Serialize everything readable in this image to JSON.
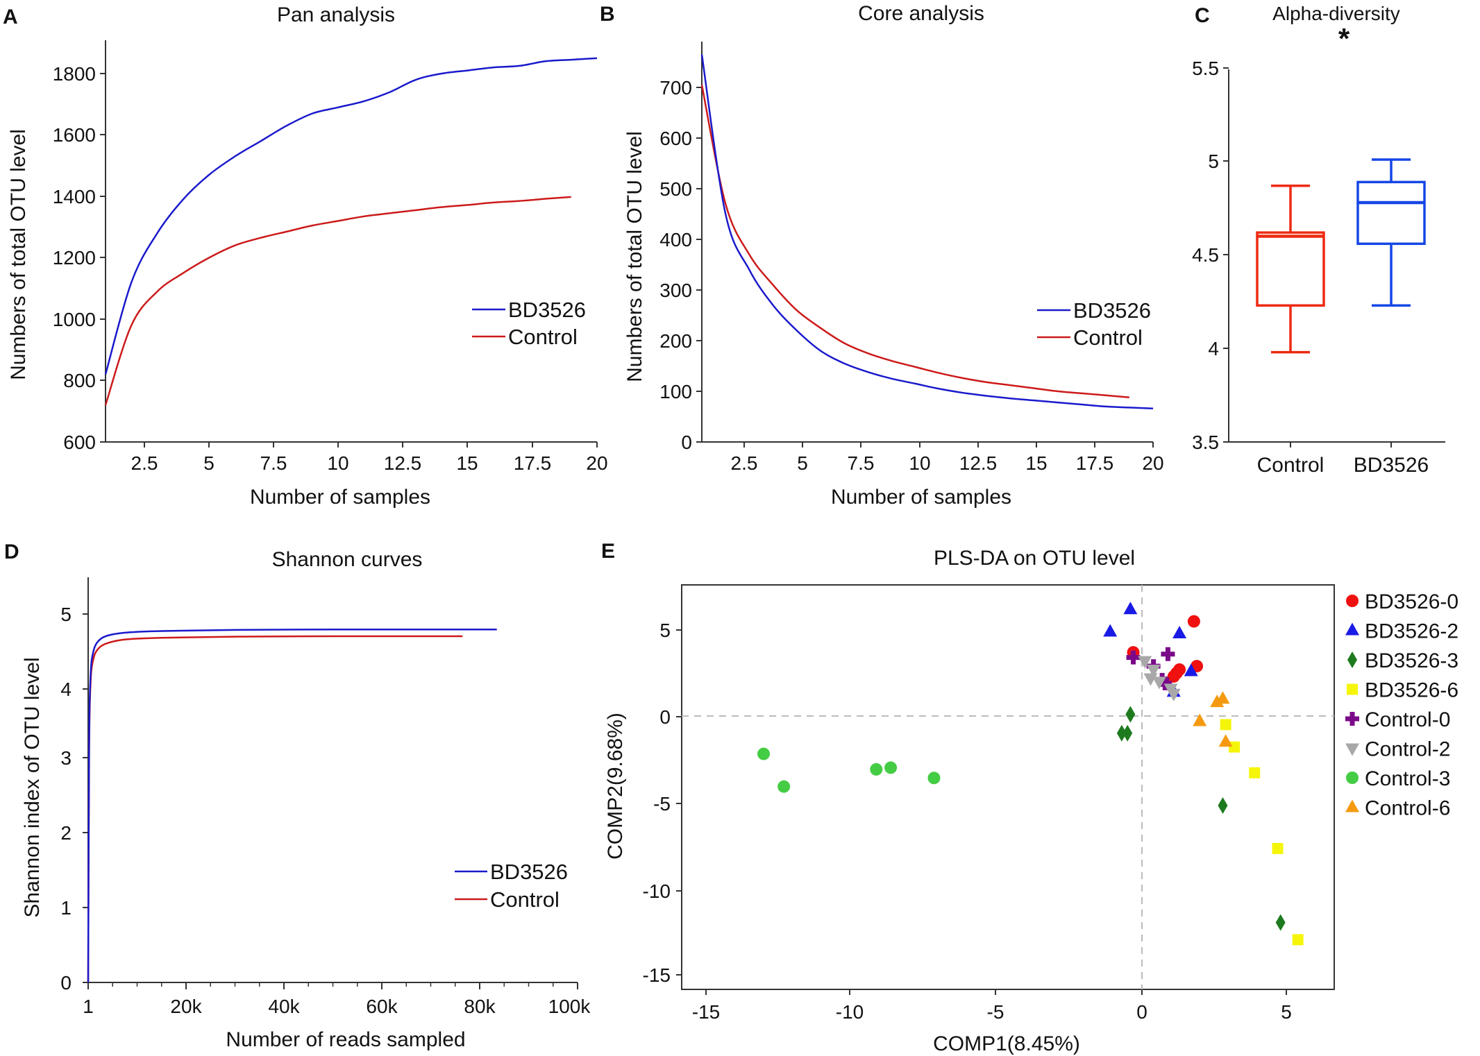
{
  "colors": {
    "bd": "#1a1acc",
    "ctrl": "#cc1a1a",
    "box_ctrl": "#ee2a12",
    "box_bd": "#1447e6",
    "red": "#f01010",
    "blue": "#1a1ae6",
    "green": "#1e7a1e",
    "yellow": "#f5f50a",
    "purple": "#7a0a8a",
    "gray": "#a8a8a8",
    "lime": "#44cc44",
    "orange": "#f59a10"
  },
  "chart_data": [
    {
      "panel": "A",
      "type": "line",
      "title": "Pan analysis",
      "xlabel": "Number of samples",
      "ylabel": "Numbers of total OTU level",
      "xlim": [
        1,
        20
      ],
      "ylim": [
        600,
        1900
      ],
      "xticks": [
        "2.5",
        "5",
        "7.5",
        "10",
        "12.5",
        "15",
        "17.5",
        "20"
      ],
      "yticks": [
        "600",
        "800",
        "1000",
        "1200",
        "1400",
        "1600",
        "1800"
      ],
      "legend": [
        "BD3526",
        "Control"
      ],
      "series": [
        {
          "name": "BD3526",
          "x": [
            1,
            2,
            3,
            4,
            5,
            6,
            7,
            8,
            9,
            10,
            11,
            12,
            13,
            14,
            15,
            16,
            17,
            18,
            19,
            20
          ],
          "y": [
            820,
            1120,
            1280,
            1390,
            1470,
            1530,
            1580,
            1630,
            1670,
            1690,
            1710,
            1740,
            1780,
            1800,
            1810,
            1820,
            1825,
            1840,
            1845,
            1850
          ]
        },
        {
          "name": "Control",
          "x": [
            1,
            2,
            3,
            4,
            5,
            6,
            7,
            8,
            9,
            10,
            11,
            12,
            13,
            14,
            15,
            16,
            17,
            18,
            19
          ],
          "y": [
            720,
            980,
            1090,
            1150,
            1200,
            1240,
            1265,
            1285,
            1305,
            1320,
            1335,
            1345,
            1355,
            1365,
            1372,
            1380,
            1385,
            1392,
            1398
          ]
        }
      ]
    },
    {
      "panel": "B",
      "type": "line",
      "title": "Core analysis",
      "xlabel": "Number of samples",
      "ylabel": "Numbers of total OTU level",
      "xlim": [
        1,
        20
      ],
      "ylim": [
        0,
        780
      ],
      "xticks": [
        "2.5",
        "5",
        "7.5",
        "10",
        "12.5",
        "15",
        "17.5",
        "20"
      ],
      "yticks": [
        "0",
        "100",
        "200",
        "300",
        "400",
        "500",
        "600",
        "700"
      ],
      "legend": [
        "BD3526",
        "Control"
      ],
      "series": [
        {
          "name": "BD3526",
          "x": [
            1,
            2,
            3,
            4,
            5,
            6,
            7,
            8,
            9,
            10,
            11,
            12,
            13,
            14,
            15,
            16,
            17,
            18,
            19,
            20
          ],
          "y": [
            765,
            450,
            340,
            270,
            220,
            180,
            155,
            138,
            125,
            115,
            105,
            97,
            91,
            86,
            82,
            78,
            74,
            70,
            68,
            66
          ]
        },
        {
          "name": "Control",
          "x": [
            1,
            2,
            3,
            4,
            5,
            6,
            7,
            8,
            9,
            10,
            11,
            12,
            13,
            14,
            15,
            16,
            17,
            18,
            19
          ],
          "y": [
            705,
            470,
            370,
            310,
            260,
            225,
            195,
            175,
            160,
            148,
            136,
            126,
            118,
            112,
            106,
            100,
            96,
            92,
            88
          ]
        }
      ]
    },
    {
      "panel": "C",
      "type": "box",
      "title": "Alpha-diversity",
      "significance": "*",
      "categories": [
        "Control",
        "BD3526"
      ],
      "ylim": [
        3.5,
        5.5
      ],
      "yticks": [
        "3.5",
        "4",
        "4.5",
        "5",
        "5.5"
      ],
      "boxes": [
        {
          "name": "Control",
          "min": 3.98,
          "q1": 4.23,
          "median": 4.6,
          "q3": 4.62,
          "max": 4.87
        },
        {
          "name": "BD3526",
          "min": 4.23,
          "q1": 4.56,
          "median": 4.78,
          "q3": 4.89,
          "max": 5.01
        }
      ]
    },
    {
      "panel": "D",
      "type": "line",
      "title": "Shannon curves",
      "xlabel": "Number of reads sampled",
      "ylabel": "Shannon index of OTU level",
      "xlim": [
        0,
        100000
      ],
      "ylim": [
        0,
        5.5
      ],
      "xticks": [
        "1",
        "20k",
        "40k",
        "60k",
        "80k",
        "100k"
      ],
      "yticks": [
        "0",
        "1",
        "2",
        "3",
        "4",
        "5"
      ],
      "legend": [
        "BD3526",
        "Control"
      ],
      "series": [
        {
          "name": "BD3526",
          "x": [
            1,
            200,
            500,
            1000,
            2000,
            4000,
            8000,
            15000,
            30000,
            50000,
            70000,
            83500
          ],
          "y": [
            0,
            3.2,
            4.1,
            4.4,
            4.55,
            4.63,
            4.67,
            4.69,
            4.705,
            4.71,
            4.71,
            4.71
          ]
        },
        {
          "name": "Control",
          "x": [
            1,
            200,
            500,
            1000,
            2000,
            4000,
            8000,
            15000,
            30000,
            50000,
            70000,
            76500
          ],
          "y": [
            0,
            3.1,
            4.0,
            4.3,
            4.45,
            4.53,
            4.58,
            4.6,
            4.615,
            4.62,
            4.62,
            4.62
          ]
        }
      ]
    },
    {
      "panel": "E",
      "type": "scatter",
      "title": "PLS-DA on OTU level",
      "xlabel": "COMP1(8.45%)",
      "ylabel": "COMP2(9.68%)",
      "xlim": [
        -16.5,
        6.5
      ],
      "ylim": [
        -15.8,
        7.5
      ],
      "xticks": [
        "-15",
        "-10",
        "-5",
        "0",
        "5"
      ],
      "yticks": [
        "-15",
        "-10",
        "-5",
        "0",
        "5"
      ],
      "groups": [
        {
          "name": "BD3526-0",
          "shape": "circle",
          "color": "red",
          "points": [
            [
              -0.3,
              3.7
            ],
            [
              1.8,
              5.5
            ],
            [
              1.3,
              2.7
            ],
            [
              1.9,
              2.9
            ],
            [
              1.1,
              2.3
            ],
            [
              1.2,
              2.5
            ]
          ]
        },
        {
          "name": "BD3526-2",
          "shape": "triangle",
          "color": "blue",
          "points": [
            [
              -0.4,
              6.2
            ],
            [
              -1.1,
              4.9
            ],
            [
              1.3,
              4.8
            ],
            [
              1.7,
              2.6
            ],
            [
              1.1,
              1.4
            ]
          ]
        },
        {
          "name": "BD3526-3",
          "shape": "diamond",
          "color": "green",
          "points": [
            [
              -0.4,
              0.1
            ],
            [
              -0.5,
              -1.0
            ],
            [
              -0.7,
              -1.0
            ],
            [
              2.8,
              -5.2
            ],
            [
              4.8,
              -12.0
            ]
          ]
        },
        {
          "name": "BD3526-6",
          "shape": "square",
          "color": "yellow",
          "points": [
            [
              2.9,
              -0.5
            ],
            [
              3.2,
              -1.8
            ],
            [
              3.9,
              -3.3
            ],
            [
              4.7,
              -7.7
            ],
            [
              5.4,
              -13.0
            ]
          ]
        },
        {
          "name": "Control-0",
          "shape": "plus",
          "color": "purple",
          "points": [
            [
              -0.3,
              3.4
            ],
            [
              0.9,
              3.6
            ],
            [
              0.4,
              2.9
            ],
            [
              0.8,
              1.9
            ],
            [
              0.7,
              2.1
            ]
          ]
        },
        {
          "name": "Control-2",
          "shape": "invtriangle",
          "color": "gray",
          "points": [
            [
              0.1,
              3.2
            ],
            [
              0.4,
              2.7
            ],
            [
              0.3,
              2.2
            ],
            [
              0.6,
              2.0
            ],
            [
              1.0,
              1.6
            ],
            [
              1.1,
              1.3
            ]
          ]
        },
        {
          "name": "Control-3",
          "shape": "circle",
          "color": "lime",
          "points": [
            [
              -13.1,
              -2.2
            ],
            [
              -12.4,
              -4.1
            ],
            [
              -9.2,
              -3.1
            ],
            [
              -8.7,
              -3.0
            ],
            [
              -7.2,
              -3.6
            ]
          ]
        },
        {
          "name": "Control-6",
          "shape": "triangle",
          "color": "orange",
          "points": [
            [
              2.0,
              -0.3
            ],
            [
              2.6,
              0.8
            ],
            [
              2.8,
              1.0
            ],
            [
              2.9,
              -1.5
            ]
          ]
        }
      ]
    }
  ],
  "panel_labels": [
    "A",
    "B",
    "C",
    "D",
    "E"
  ]
}
